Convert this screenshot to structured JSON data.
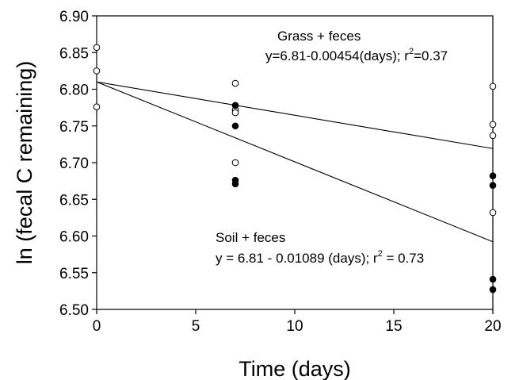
{
  "chart_data": {
    "type": "scatter",
    "xlabel": "Time (days)",
    "ylabel": "ln (fecal C remaining)",
    "xlim": [
      0,
      20
    ],
    "ylim": [
      6.5,
      6.9
    ],
    "x_ticks": [
      "0",
      "5",
      "10",
      "15",
      "20"
    ],
    "y_ticks": [
      "6.50",
      "6.55",
      "6.60",
      "6.65",
      "6.70",
      "6.75",
      "6.80",
      "6.85",
      "6.90"
    ],
    "series": [
      {
        "name": "Grass + feces",
        "marker": "open circle",
        "points": [
          [
            0,
            6.857
          ],
          [
            0,
            6.825
          ],
          [
            0,
            6.776
          ],
          [
            7,
            6.808
          ],
          [
            7,
            6.772
          ],
          [
            7,
            6.768
          ],
          [
            7,
            6.7
          ],
          [
            20,
            6.804
          ],
          [
            20,
            6.752
          ],
          [
            20,
            6.737
          ],
          [
            20,
            6.632
          ]
        ],
        "fit": {
          "intercept": 6.81,
          "slope": -0.00454,
          "equation": "y=6.81-0.00454(days); r",
          "r2_sup": "2",
          "r2_value": "=0.37"
        }
      },
      {
        "name": "Soil + feces",
        "marker": "filled circle",
        "points": [
          [
            7,
            6.778
          ],
          [
            7,
            6.75
          ],
          [
            7,
            6.676
          ],
          [
            7,
            6.671
          ],
          [
            20,
            6.682
          ],
          [
            20,
            6.669
          ],
          [
            20,
            6.541
          ],
          [
            20,
            6.527
          ]
        ],
        "fit": {
          "intercept": 6.81,
          "slope": -0.01089,
          "equation": "y = 6.81 - 0.01089 (days); r",
          "r2_sup": "2",
          "r2_value": " = 0.73"
        }
      }
    ],
    "grid": false,
    "legend": "none"
  }
}
